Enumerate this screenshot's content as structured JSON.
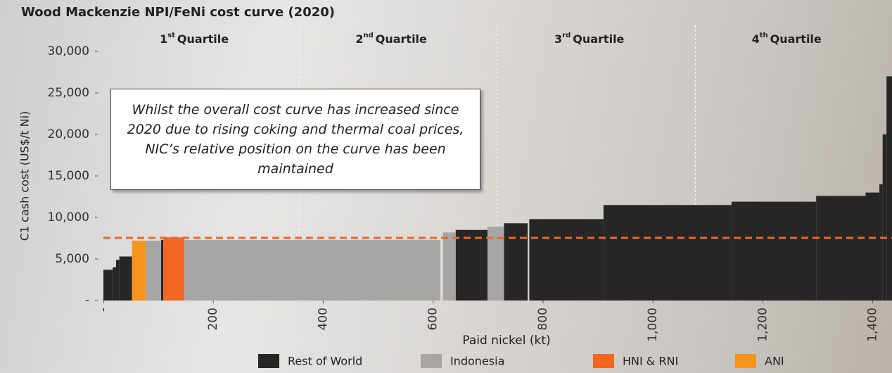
{
  "chart_data": {
    "type": "cost_curve",
    "title": "Wood Mackenzie NPI/FeNi cost curve (2020)",
    "y_label": "C1 cash cost (US$/t Ni)",
    "x_label": "Paid nickel (kt)",
    "annotation": "Whilst the overall cost curve has increased since 2020 due to rising coking and thermal coal prices, NIC’s relative position on the curve has been maintained",
    "xlim": [
      0,
      1435
    ],
    "ylim": [
      0,
      30000
    ],
    "xticks": [
      {
        "value": 0,
        "label": "-"
      },
      200,
      400,
      600,
      800,
      {
        "value": 1000,
        "label": "1,000"
      },
      {
        "value": 1200,
        "label": "1,200"
      },
      {
        "value": 1400,
        "label": "1,400"
      }
    ],
    "yticks": [
      {
        "value": 0,
        "label": "-"
      },
      {
        "value": 5000,
        "label": "5,000"
      },
      {
        "value": 10000,
        "label": "10,000"
      },
      {
        "value": 15000,
        "label": "15,000"
      },
      {
        "value": 20000,
        "label": "20,000"
      },
      {
        "value": 25000,
        "label": "25,000"
      },
      {
        "value": 30000,
        "label": "30,000"
      }
    ],
    "reference_line": {
      "value": 7540,
      "color": "#f26522"
    },
    "quartile_boundaries": [
      356,
      717,
      1077
    ],
    "quartiles": [
      {
        "num": "1",
        "sup": "st",
        "text": "Quartile"
      },
      {
        "num": "2",
        "sup": "nd",
        "text": "Quartile"
      },
      {
        "num": "3",
        "sup": "rd",
        "text": "Quartile"
      },
      {
        "num": "4",
        "sup": "th",
        "text": "Quartile"
      }
    ],
    "series": [
      {
        "name": "Rest of World",
        "color": "#262626",
        "x_start": [
          0,
          17,
          23,
          29,
          105,
          641,
          729,
          775,
          910,
          1143,
          1297,
          1387,
          1412,
          1418,
          1425
        ],
        "x_end": [
          17,
          23,
          29,
          52,
          109,
          699,
          772,
          910,
          1143,
          1297,
          1387,
          1412,
          1418,
          1425,
          1435
        ],
        "values": [
          3700,
          4000,
          4900,
          5300,
          7300,
          8500,
          9300,
          9800,
          11500,
          11900,
          12600,
          13000,
          14000,
          20000,
          27000
        ]
      },
      {
        "name": "Indonesia",
        "color": "#a6a6a6",
        "x_start": [
          77,
          147,
          618,
          699
        ],
        "x_end": [
          105,
          613,
          641,
          729
        ],
        "values": [
          7200,
          7300,
          8200,
          8900
        ]
      },
      {
        "name": "HNI & RNI",
        "color": "#f26522",
        "x_start": [
          109
        ],
        "x_end": [
          147
        ],
        "values": [
          7600
        ]
      },
      {
        "name": "ANI",
        "color": "#f7941d",
        "x_start": [
          52
        ],
        "x_end": [
          77
        ],
        "values": [
          7200
        ]
      }
    ]
  }
}
